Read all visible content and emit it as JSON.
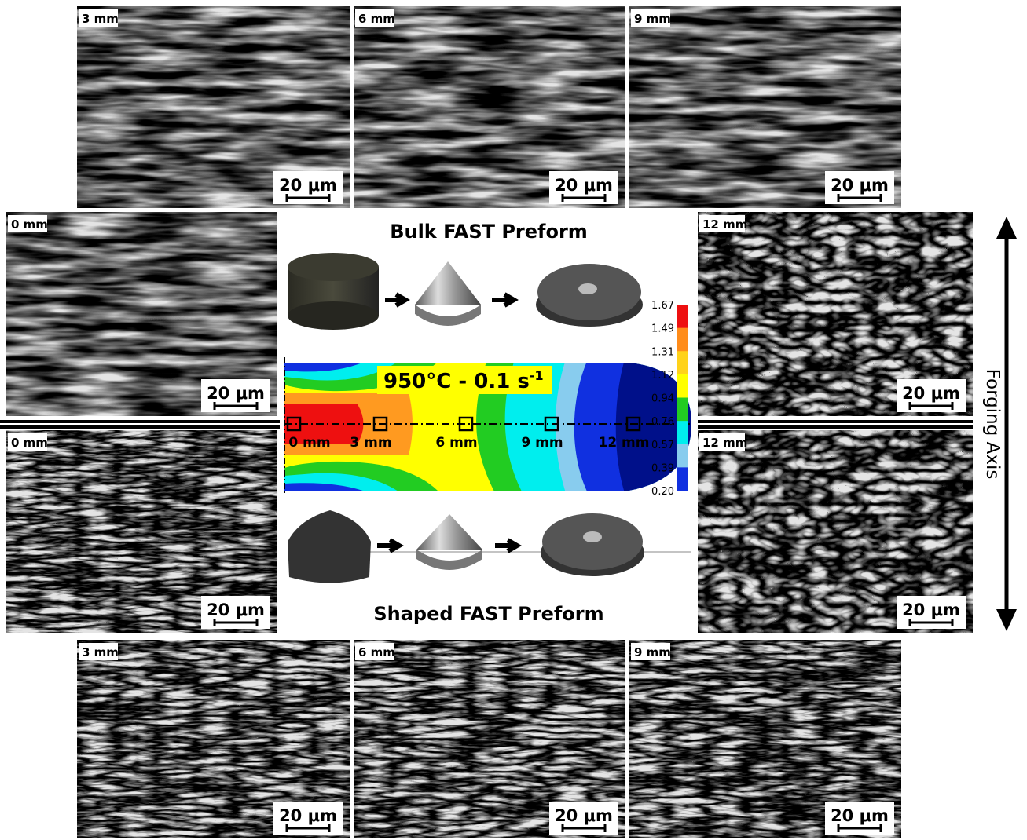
{
  "panels": [
    {
      "label": "3 mm",
      "scale": "20 μm"
    },
    {
      "label": "6 mm",
      "scale": "20 μm"
    },
    {
      "label": "9 mm",
      "scale": "20 μm"
    },
    {
      "label": "0 mm",
      "scale": "20 μm"
    },
    {
      "label": "12 mm",
      "scale": "20 μm"
    },
    {
      "label": "0 mm",
      "scale": "20 μm"
    },
    {
      "label": "12 mm",
      "scale": "20 μm"
    },
    {
      "label": "3 mm",
      "scale": "20 μm"
    },
    {
      "label": "6 mm",
      "scale": "20 μm"
    },
    {
      "label": "9 mm",
      "scale": "20 μm"
    }
  ],
  "center": {
    "top_title": "Bulk FAST Preform",
    "bottom_title": "Shaped FAST Preform",
    "condition": {
      "text": "950°C - 0.1 s",
      "sup": "-1"
    },
    "positions": [
      "0 mm",
      "3 mm",
      "6 mm",
      "9 mm",
      "12 mm"
    ],
    "colorbar": [
      "1.67",
      "1.49",
      "1.31",
      "1.12",
      "0.94",
      "0.76",
      "0.57",
      "0.39",
      "0.20"
    ]
  },
  "axis_label": "Forging Axis"
}
